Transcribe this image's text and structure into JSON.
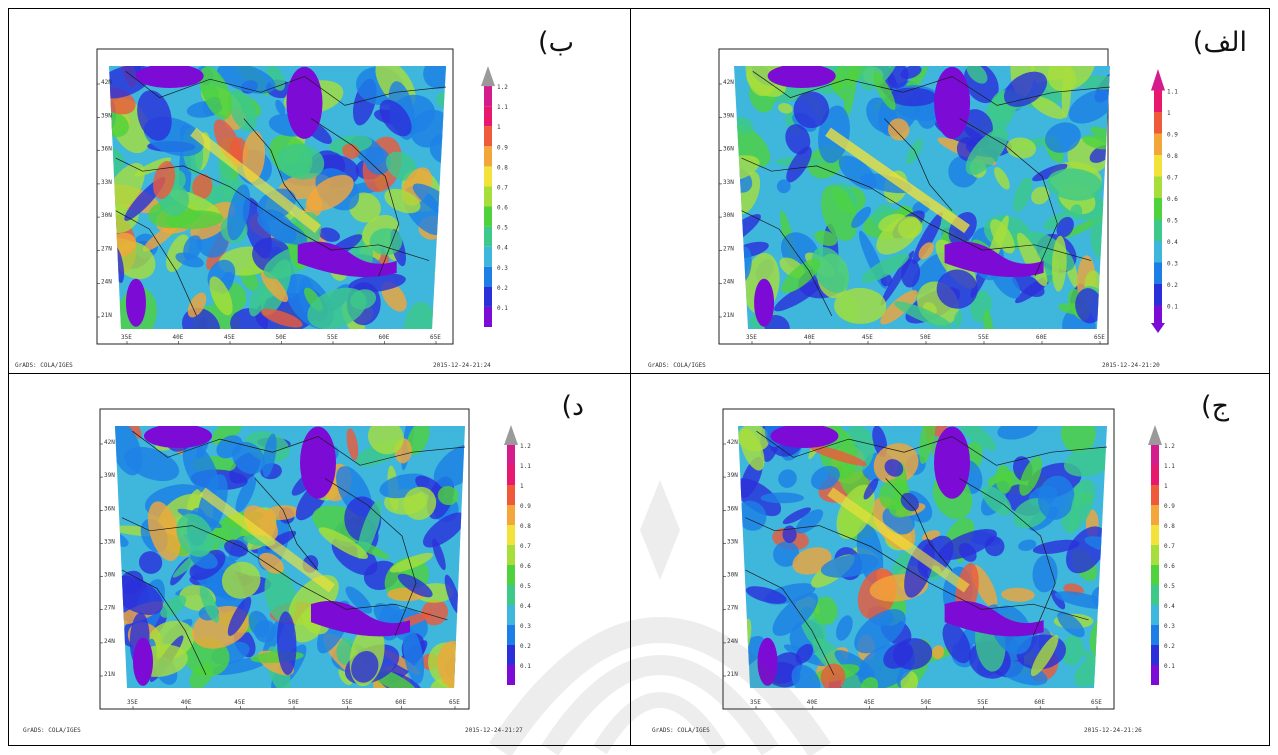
{
  "panels": [
    {
      "id": "b",
      "label": "ب)",
      "credit": "GrADS: COLA/IGES",
      "timestamp": "2015-12-24-21:24",
      "lat_labels": [
        "42N",
        "39N",
        "36N",
        "33N",
        "30N",
        "27N",
        "24N",
        "21N"
      ],
      "lon_labels": [
        "35E",
        "40E",
        "45E",
        "50E",
        "55E",
        "60E",
        "65E"
      ],
      "colorbar": [
        "1.2",
        "1.1",
        "1",
        "0.9",
        "0.8",
        "0.7",
        "0.6",
        "0.5",
        "0.4",
        "0.3",
        "0.2",
        "0.1"
      ]
    },
    {
      "id": "alef",
      "label": "الف)",
      "credit": "GrADS: COLA/IGES",
      "timestamp": "2015-12-24-21:20",
      "lat_labels": [
        "42N",
        "39N",
        "36N",
        "33N",
        "30N",
        "27N",
        "24N",
        "21N"
      ],
      "lon_labels": [
        "35E",
        "40E",
        "45E",
        "50E",
        "55E",
        "60E",
        "65E"
      ],
      "colorbar": [
        "1.1",
        "1",
        "0.9",
        "0.8",
        "0.7",
        "0.6",
        "0.5",
        "0.4",
        "0.3",
        "0.2",
        "0.1"
      ]
    },
    {
      "id": "dal",
      "label": "د)",
      "credit": "GrADS: COLA/IGES",
      "timestamp": "2015-12-24-21:27",
      "lat_labels": [
        "42N",
        "39N",
        "36N",
        "33N",
        "30N",
        "27N",
        "24N",
        "21N"
      ],
      "lon_labels": [
        "35E",
        "40E",
        "45E",
        "50E",
        "55E",
        "60E",
        "65E"
      ],
      "colorbar": [
        "1.2",
        "1.1",
        "1",
        "0.9",
        "0.8",
        "0.7",
        "0.6",
        "0.5",
        "0.4",
        "0.3",
        "0.2",
        "0.1"
      ]
    },
    {
      "id": "jim",
      "label": "ج)",
      "credit": "GrADS: COLA/IGES",
      "timestamp": "2015-12-24-21:26",
      "lat_labels": [
        "42N",
        "39N",
        "36N",
        "33N",
        "30N",
        "27N",
        "24N",
        "21N"
      ],
      "lon_labels": [
        "35E",
        "40E",
        "45E",
        "50E",
        "55E",
        "60E",
        "65E"
      ],
      "colorbar": [
        "1.2",
        "1.1",
        "1",
        "0.9",
        "0.8",
        "0.7",
        "0.6",
        "0.5",
        "0.4",
        "0.3",
        "0.2",
        "0.1"
      ]
    }
  ],
  "palette": [
    "#7d0bd6",
    "#2a2fd9",
    "#1d7fe6",
    "#3fb6dc",
    "#3dc98a",
    "#4fd23c",
    "#a8de3c",
    "#f2e23a",
    "#f3a63a",
    "#ef5a3a",
    "#e8186e",
    "#d51c8c"
  ],
  "colorbar_top_color": "#9a9a9a"
}
